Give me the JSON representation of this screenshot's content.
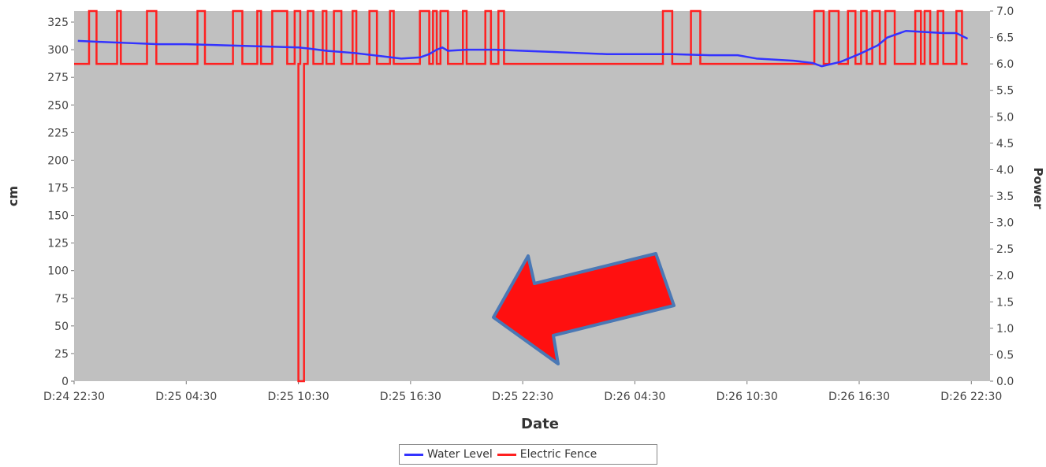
{
  "chart_data": {
    "type": "line",
    "title": "",
    "xlabel": "Date",
    "ylabel_left": "cm",
    "ylabel_right": "Power",
    "x_range": [
      0,
      49
    ],
    "x_ticks": [
      {
        "x": 0,
        "label": "D:24 22:30"
      },
      {
        "x": 6,
        "label": "D:25 04:30"
      },
      {
        "x": 12,
        "label": "D:25 10:30"
      },
      {
        "x": 18,
        "label": "D:25 16:30"
      },
      {
        "x": 24,
        "label": "D:25 22:30"
      },
      {
        "x": 30,
        "label": "D:26 04:30"
      },
      {
        "x": 36,
        "label": "D:26 10:30"
      },
      {
        "x": 42,
        "label": "D:26 16:30"
      },
      {
        "x": 48,
        "label": "D:26 22:30"
      }
    ],
    "y_left": {
      "min": 0,
      "max": 335,
      "ticks": [
        0,
        25,
        50,
        75,
        100,
        125,
        150,
        175,
        200,
        225,
        250,
        275,
        300,
        325
      ]
    },
    "y_right": {
      "min": 0,
      "max": 7.0,
      "ticks": [
        "0.0",
        "0.5",
        "1.0",
        "1.5",
        "2.0",
        "2.5",
        "3.0",
        "3.5",
        "4.0",
        "4.5",
        "5.0",
        "5.5",
        "6.0",
        "6.5",
        "7.0"
      ]
    },
    "grid": false,
    "legend_position": "bottom",
    "series": [
      {
        "name": "Water Level",
        "axis": "left",
        "color": "#3333ff",
        "x": [
          0.2,
          1.5,
          3,
          4.5,
          6,
          8,
          10,
          12,
          12.6,
          13.5,
          15,
          16.5,
          17.5,
          18.5,
          19,
          19.4,
          19.7,
          20,
          21,
          22.5,
          24,
          25.5,
          27,
          28.5,
          30,
          32,
          34,
          35.5,
          36.5,
          37.5,
          38.5,
          39.5,
          40,
          41,
          42,
          43,
          43.5,
          44.5,
          45.5,
          46.5,
          47.2,
          47.8
        ],
        "y": [
          308,
          307,
          306,
          305,
          305,
          304,
          303,
          302,
          301,
          299,
          297,
          294,
          292,
          293,
          296,
          300,
          302,
          299,
          300,
          300,
          299,
          298,
          297,
          296,
          296,
          296,
          295,
          295,
          292,
          291,
          290,
          288,
          285,
          289,
          296,
          304,
          311,
          317,
          316,
          315,
          315,
          310
        ]
      },
      {
        "name": "Electric Fence",
        "axis": "right",
        "color": "#ff2020",
        "baseline": 6.0,
        "high": 7.0,
        "on_intervals": [
          [
            0.8,
            1.2
          ],
          [
            2.3,
            2.5
          ],
          [
            3.9,
            4.4
          ],
          [
            6.6,
            7.0
          ],
          [
            8.5,
            9.0
          ],
          [
            9.8,
            10.0
          ],
          [
            10.6,
            11.4
          ],
          [
            11.8,
            12.1
          ],
          [
            12.5,
            12.8
          ],
          [
            13.3,
            13.5
          ],
          [
            13.9,
            14.3
          ],
          [
            14.9,
            15.1
          ],
          [
            15.8,
            16.2
          ],
          [
            16.9,
            17.1
          ],
          [
            18.5,
            19.0
          ],
          [
            19.2,
            19.4
          ],
          [
            19.6,
            20.0
          ],
          [
            20.8,
            21.0
          ],
          [
            22.0,
            22.3
          ],
          [
            22.7,
            23.0
          ],
          [
            31.5,
            32.0
          ],
          [
            33.0,
            33.5
          ],
          [
            39.6,
            40.1
          ],
          [
            40.4,
            40.9
          ],
          [
            41.4,
            41.8
          ],
          [
            42.1,
            42.4
          ],
          [
            42.7,
            43.1
          ],
          [
            43.4,
            43.9
          ],
          [
            45.0,
            45.3
          ],
          [
            45.5,
            45.8
          ],
          [
            46.2,
            46.5
          ],
          [
            47.2,
            47.5
          ]
        ],
        "drops": [
          [
            12.0,
            12.3
          ]
        ],
        "drop_value": 0.0
      }
    ]
  }
}
